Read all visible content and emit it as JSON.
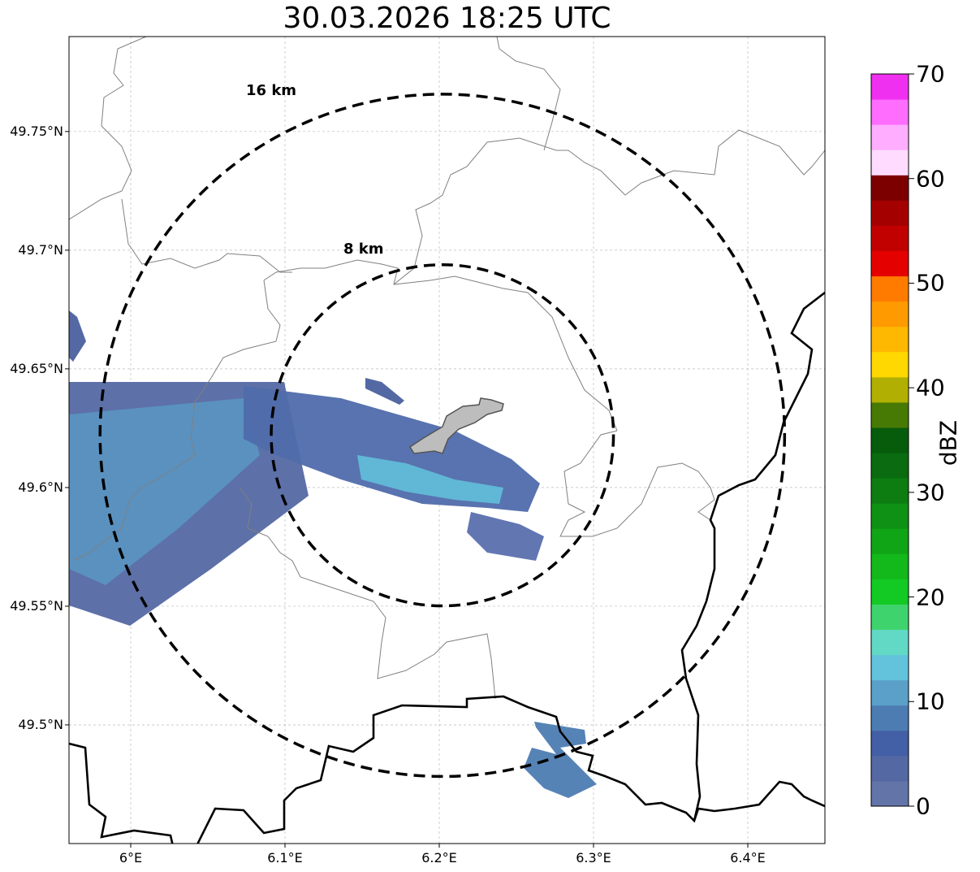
{
  "title": "30.03.2026 18:25 UTC",
  "map": {
    "lon_range": [
      5.96,
      6.45
    ],
    "lat_range": [
      49.45,
      49.79
    ],
    "grid": true,
    "x_ticks": [
      {
        "value": 6.0,
        "label": "6°E"
      },
      {
        "value": 6.1,
        "label": "6.1°E"
      },
      {
        "value": 6.2,
        "label": "6.2°E"
      },
      {
        "value": 6.3,
        "label": "6.3°E"
      },
      {
        "value": 6.4,
        "label": "6.4°E"
      }
    ],
    "y_ticks": [
      {
        "value": 49.75,
        "label": "49.75°N"
      },
      {
        "value": 49.7,
        "label": "49.7°N"
      },
      {
        "value": 49.65,
        "label": "49.65°N"
      },
      {
        "value": 49.6,
        "label": "49.6°N"
      },
      {
        "value": 49.55,
        "label": "49.55°N"
      },
      {
        "value": 49.5,
        "label": "49.5°N"
      }
    ],
    "range_rings": [
      {
        "label": "8 km",
        "radius_km": 8
      },
      {
        "label": "16 km",
        "radius_km": 16
      }
    ],
    "center": {
      "lon": 6.202,
      "lat": 49.622
    },
    "highlight_area_color": "#bdbdbd"
  },
  "colorbar": {
    "label": "dBZ",
    "min": 0,
    "max": 70,
    "tick_labels": [
      "0",
      "10",
      "20",
      "30",
      "40",
      "50",
      "60",
      "70"
    ],
    "tick_values": [
      0,
      10,
      20,
      30,
      40,
      50,
      60,
      70
    ],
    "colors": [
      "#6375a8",
      "#5468a3",
      "#435fa5",
      "#4d7cb2",
      "#5aa0c9",
      "#63c3dd",
      "#62d9c5",
      "#3fd36e",
      "#13c923",
      "#13b81b",
      "#10a516",
      "#0e9114",
      "#0d7d12",
      "#0a6b10",
      "#075c0c",
      "#477a05",
      "#b1b002",
      "#ffd801",
      "#ffb801",
      "#ff9b00",
      "#ff7b00",
      "#e50000",
      "#c10000",
      "#a40000",
      "#7d0000",
      "#ffdcff",
      "#ffaeff",
      "#ff6dff",
      "#f030f0"
    ]
  }
}
